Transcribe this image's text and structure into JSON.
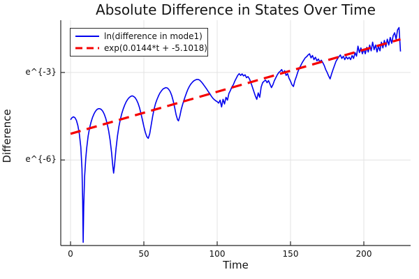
{
  "chart_data": {
    "type": "line",
    "title": "Absolute Difference in States Over Time",
    "xlabel": "Time",
    "ylabel": "Difference",
    "xlim": [
      -6.67,
      231.9
    ],
    "ylim": [
      -8.93,
      -1.21
    ],
    "grid": true,
    "legend_position": "top-left",
    "x_ticks": [
      {
        "value": 0,
        "label": "0"
      },
      {
        "value": 50,
        "label": "50"
      },
      {
        "value": 100,
        "label": "100"
      },
      {
        "value": 150,
        "label": "150"
      },
      {
        "value": 200,
        "label": "200"
      }
    ],
    "y_ticks": [
      {
        "value": -3,
        "label": "e^{-3}"
      },
      {
        "value": -6,
        "label": "e^{-6}"
      }
    ],
    "y_scale_note": "y values are natural-log units; axis labeled e^{-3}, e^{-6}",
    "colors": {
      "grid": "#e3e3e3",
      "spine": "#262626",
      "text": "#131313"
    },
    "series": [
      {
        "name": "ln(difference in mode1)",
        "color": "#0000ee",
        "width": 1.6,
        "dash": null,
        "x": [
          0,
          1,
          2,
          3,
          4,
          5,
          6,
          7,
          7.8,
          8.3,
          8.6,
          9,
          9.6,
          10.4,
          11,
          12,
          13,
          14,
          15,
          16,
          17,
          18,
          19,
          20,
          21,
          22,
          23,
          24,
          25,
          26,
          27,
          28,
          28.8,
          29.4,
          30,
          31,
          32,
          33,
          34,
          35,
          36,
          37,
          38,
          39,
          40,
          41,
          42,
          43,
          44,
          45,
          46,
          47,
          48,
          49,
          50,
          51,
          52,
          53,
          54,
          55,
          56,
          57,
          58,
          59,
          60,
          61,
          62,
          63,
          64,
          65,
          66,
          67,
          68,
          69,
          70,
          71,
          72,
          73,
          73.6,
          74.5,
          75.5,
          76.5,
          78,
          79,
          80,
          81,
          82,
          83,
          84,
          85,
          86,
          87,
          88,
          89,
          90,
          91,
          92,
          93,
          94,
          95,
          96,
          97,
          98,
          99,
          100,
          101,
          102,
          103,
          104,
          105,
          106,
          107,
          108,
          109,
          110,
          111,
          112,
          113,
          114,
          115,
          116,
          117,
          118,
          119,
          120,
          121,
          122,
          123,
          124,
          125,
          126,
          127,
          128,
          129,
          130,
          131,
          132,
          133,
          134,
          135,
          136,
          137,
          138,
          139,
          140,
          141,
          142,
          143,
          144,
          145,
          146,
          147,
          148,
          149,
          150,
          151,
          152,
          153,
          154,
          155,
          156,
          157,
          158,
          159,
          160,
          161,
          162,
          163,
          164,
          165,
          166,
          167,
          168,
          169,
          170,
          171,
          172,
          173,
          174,
          175,
          176,
          177,
          178,
          179,
          180,
          181,
          182,
          183,
          184,
          185,
          186,
          187,
          188,
          189,
          190,
          191,
          192,
          193,
          194,
          195,
          196,
          197,
          198,
          199,
          200,
          201,
          202,
          203,
          204,
          205,
          206,
          207,
          208,
          209,
          210,
          211,
          212,
          213,
          214,
          215,
          216,
          217,
          218,
          219,
          220,
          221,
          222,
          223,
          224,
          225
        ],
        "y": [
          -4.62,
          -4.55,
          -4.52,
          -4.55,
          -4.64,
          -4.82,
          -5.1,
          -5.55,
          -6.3,
          -7.4,
          -8.82,
          -7.6,
          -6.55,
          -5.95,
          -5.6,
          -5.18,
          -4.9,
          -4.7,
          -4.54,
          -4.42,
          -4.33,
          -4.27,
          -4.24,
          -4.24,
          -4.27,
          -4.33,
          -4.43,
          -4.57,
          -4.76,
          -5.0,
          -5.32,
          -5.75,
          -6.2,
          -6.45,
          -6.18,
          -5.62,
          -5.18,
          -4.85,
          -4.6,
          -4.4,
          -4.24,
          -4.11,
          -4.0,
          -3.92,
          -3.86,
          -3.82,
          -3.8,
          -3.82,
          -3.86,
          -3.94,
          -4.05,
          -4.2,
          -4.4,
          -4.62,
          -4.85,
          -5.05,
          -5.2,
          -5.26,
          -5.1,
          -4.8,
          -4.5,
          -4.25,
          -4.06,
          -3.92,
          -3.8,
          -3.7,
          -3.63,
          -3.57,
          -3.54,
          -3.52,
          -3.53,
          -3.58,
          -3.66,
          -3.79,
          -3.97,
          -4.2,
          -4.45,
          -4.62,
          -4.66,
          -4.5,
          -4.26,
          -4.08,
          -3.85,
          -3.71,
          -3.58,
          -3.48,
          -3.4,
          -3.34,
          -3.29,
          -3.26,
          -3.24,
          -3.24,
          -3.26,
          -3.31,
          -3.37,
          -3.44,
          -3.51,
          -3.58,
          -3.66,
          -3.73,
          -3.81,
          -3.88,
          -3.93,
          -3.97,
          -4.0,
          -4.05,
          -3.95,
          -4.18,
          -3.92,
          -4.08,
          -3.85,
          -3.95,
          -3.72,
          -3.62,
          -3.5,
          -3.42,
          -3.3,
          -3.2,
          -3.1,
          -3.04,
          -3.1,
          -3.05,
          -3.12,
          -3.08,
          -3.18,
          -3.14,
          -3.22,
          -3.35,
          -3.5,
          -3.65,
          -3.8,
          -3.92,
          -3.7,
          -3.85,
          -3.5,
          -3.35,
          -3.3,
          -3.26,
          -3.35,
          -3.28,
          -3.4,
          -3.52,
          -3.42,
          -3.28,
          -3.18,
          -3.08,
          -3.0,
          -2.96,
          -2.9,
          -3.02,
          -2.94,
          -3.1,
          -3.04,
          -3.2,
          -3.3,
          -3.42,
          -3.48,
          -3.28,
          -3.14,
          -2.98,
          -2.86,
          -2.76,
          -2.66,
          -2.58,
          -2.5,
          -2.46,
          -2.4,
          -2.36,
          -2.5,
          -2.42,
          -2.56,
          -2.48,
          -2.6,
          -2.54,
          -2.64,
          -2.58,
          -2.66,
          -2.76,
          -2.9,
          -3.0,
          -3.12,
          -3.22,
          -3.05,
          -2.9,
          -2.76,
          -2.62,
          -2.54,
          -2.46,
          -2.4,
          -2.52,
          -2.44,
          -2.56,
          -2.46,
          -2.54,
          -2.48,
          -2.56,
          -2.42,
          -2.52,
          -2.32,
          -2.44,
          -2.1,
          -2.32,
          -2.16,
          -2.36,
          -2.2,
          -2.36,
          -2.14,
          -2.3,
          -2.06,
          -2.26,
          -1.96,
          -2.22,
          -2.06,
          -2.3,
          -2.1,
          -2.26,
          -1.96,
          -2.16,
          -1.9,
          -2.12,
          -1.86,
          -2.06,
          -1.8,
          -2.0,
          -1.74,
          -1.64,
          -1.86,
          -1.54,
          -1.46,
          -2.28
        ]
      },
      {
        "name": "exp(0.0144*t + -5.1018)",
        "color": "#f50000",
        "width": 3.2,
        "dash": [
          15,
          9
        ],
        "x": [
          0,
          225
        ],
        "y": [
          -5.1018,
          -1.8618
        ]
      }
    ]
  }
}
